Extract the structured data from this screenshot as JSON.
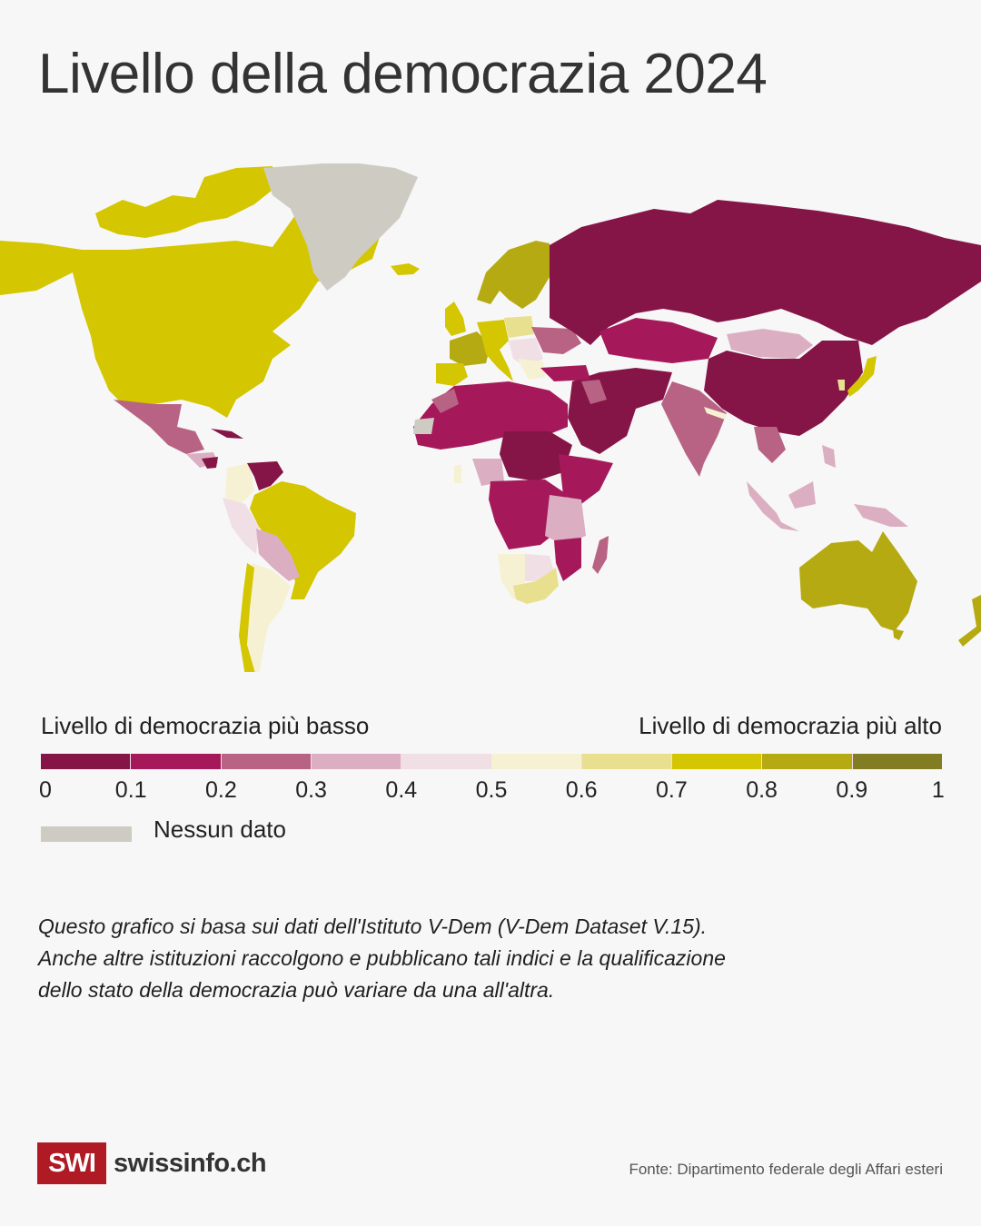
{
  "header": {
    "title": "Livello della democrazia 2024"
  },
  "legend": {
    "low_label": "Livello di democrazia più basso",
    "high_label": "Livello di democrazia più alto",
    "bins": [
      {
        "from": 0.0,
        "to": 0.1,
        "color": "#851447"
      },
      {
        "from": 0.1,
        "to": 0.2,
        "color": "#a5195b"
      },
      {
        "from": 0.2,
        "to": 0.3,
        "color": "#b86383"
      },
      {
        "from": 0.3,
        "to": 0.4,
        "color": "#dbafc1"
      },
      {
        "from": 0.4,
        "to": 0.5,
        "color": "#f1dfe6"
      },
      {
        "from": 0.5,
        "to": 0.6,
        "color": "#f6f1d3"
      },
      {
        "from": 0.6,
        "to": 0.7,
        "color": "#e8e08f"
      },
      {
        "from": 0.7,
        "to": 0.8,
        "color": "#d4c600"
      },
      {
        "from": 0.8,
        "to": 0.9,
        "color": "#b5aa12"
      },
      {
        "from": 0.9,
        "to": 1.0,
        "color": "#827d22"
      }
    ],
    "ticks": [
      "0",
      "0.1",
      "0.2",
      "0.3",
      "0.4",
      "0.5",
      "0.6",
      "0.7",
      "0.8",
      "0.9",
      "1"
    ],
    "no_data_label": "Nessun dato",
    "no_data_color": "#cecbc3"
  },
  "chart_data": {
    "type": "choropleth",
    "title": "Livello della democrazia 2024",
    "scale": {
      "min": 0,
      "max": 1,
      "step": 0.1
    },
    "regions": [
      {
        "name": "Canada",
        "bin": "0.7-0.8"
      },
      {
        "name": "United States",
        "bin": "0.7-0.8"
      },
      {
        "name": "Greenland",
        "bin": "no data"
      },
      {
        "name": "Iceland",
        "bin": "0.7-0.8"
      },
      {
        "name": "Mexico",
        "bin": "0.2-0.3"
      },
      {
        "name": "Cuba",
        "bin": "0-0.1"
      },
      {
        "name": "Nicaragua",
        "bin": "0-0.1"
      },
      {
        "name": "Costa Rica",
        "bin": "0.8-0.9"
      },
      {
        "name": "Venezuela",
        "bin": "0-0.1"
      },
      {
        "name": "Colombia",
        "bin": "0.5-0.6"
      },
      {
        "name": "Peru / Ecuador",
        "bin": "0.4-0.5"
      },
      {
        "name": "Brazil",
        "bin": "0.7-0.8"
      },
      {
        "name": "Bolivia / Paraguay",
        "bin": "0.3-0.4"
      },
      {
        "name": "Argentina",
        "bin": "0.5-0.6"
      },
      {
        "name": "Chile",
        "bin": "0.7-0.8"
      },
      {
        "name": "Uruguay",
        "bin": "0.7-0.8"
      },
      {
        "name": "Norway / Sweden / Finland",
        "bin": "0.8-0.9"
      },
      {
        "name": "United Kingdom",
        "bin": "0.7-0.8"
      },
      {
        "name": "France",
        "bin": "0.8-0.9"
      },
      {
        "name": "Germany",
        "bin": "0.7-0.8"
      },
      {
        "name": "Spain / Italy",
        "bin": "0.7-0.8"
      },
      {
        "name": "Poland",
        "bin": "0.6-0.7"
      },
      {
        "name": "Hungary / Romania",
        "bin": "0.4-0.5"
      },
      {
        "name": "Serbia",
        "bin": "0.2-0.3"
      },
      {
        "name": "Ukraine",
        "bin": "0.2-0.3"
      },
      {
        "name": "Belarus",
        "bin": "0-0.1"
      },
      {
        "name": "Russia",
        "bin": "0-0.1"
      },
      {
        "name": "Turkey",
        "bin": "0.1-0.2"
      },
      {
        "name": "Kazakhstan",
        "bin": "0.1-0.2"
      },
      {
        "name": "Mongolia",
        "bin": "0.3-0.4"
      },
      {
        "name": "China",
        "bin": "0-0.1"
      },
      {
        "name": "Japan",
        "bin": "0.7-0.8"
      },
      {
        "name": "South Korea",
        "bin": "0.6-0.7"
      },
      {
        "name": "Taiwan",
        "bin": "0.7-0.8"
      },
      {
        "name": "India",
        "bin": "0.2-0.3"
      },
      {
        "name": "Nepal",
        "bin": "0.5-0.6"
      },
      {
        "name": "Iran / Saudi Arabia",
        "bin": "0-0.1"
      },
      {
        "name": "Iraq",
        "bin": "0.2-0.3"
      },
      {
        "name": "Indonesia / Philippines / PNG",
        "bin": "0.3-0.4"
      },
      {
        "name": "Thailand",
        "bin": "0.2-0.3"
      },
      {
        "name": "Australia",
        "bin": "0.8-0.9"
      },
      {
        "name": "New Zealand",
        "bin": "0.8-0.9"
      },
      {
        "name": "Western Sahara",
        "bin": "no data"
      },
      {
        "name": "Morocco",
        "bin": "0.2-0.3"
      },
      {
        "name": "Algeria / Libya / Egypt / Mali / Niger",
        "bin": "0.1-0.2"
      },
      {
        "name": "Chad / Sudan / CAR",
        "bin": "0-0.1"
      },
      {
        "name": "Nigeria",
        "bin": "0.3-0.4"
      },
      {
        "name": "Ghana",
        "bin": "0.5-0.6"
      },
      {
        "name": "DR Congo / Angola",
        "bin": "0.1-0.2"
      },
      {
        "name": "Kenya",
        "bin": "0.4-0.5"
      },
      {
        "name": "Tanzania / Zambia",
        "bin": "0.3-0.4"
      },
      {
        "name": "Namibia",
        "bin": "0.5-0.6"
      },
      {
        "name": "Botswana",
        "bin": "0.4-0.5"
      },
      {
        "name": "South Africa",
        "bin": "0.6-0.7"
      },
      {
        "name": "Madagascar",
        "bin": "0.2-0.3"
      }
    ]
  },
  "note": {
    "lines": [
      "Questo grafico si basa sui dati dell'Istituto V-Dem (V-Dem Dataset V.15).",
      "Anche altre istituzioni raccolgono e pubblicano tali indici e la qualificazione",
      "dello stato della democrazia può variare da una all'altra."
    ]
  },
  "footer": {
    "logo_mark": "SWI",
    "logo_text": "swissinfo.ch",
    "source": "Fonte: Dipartimento federale degli Affari esteri"
  }
}
